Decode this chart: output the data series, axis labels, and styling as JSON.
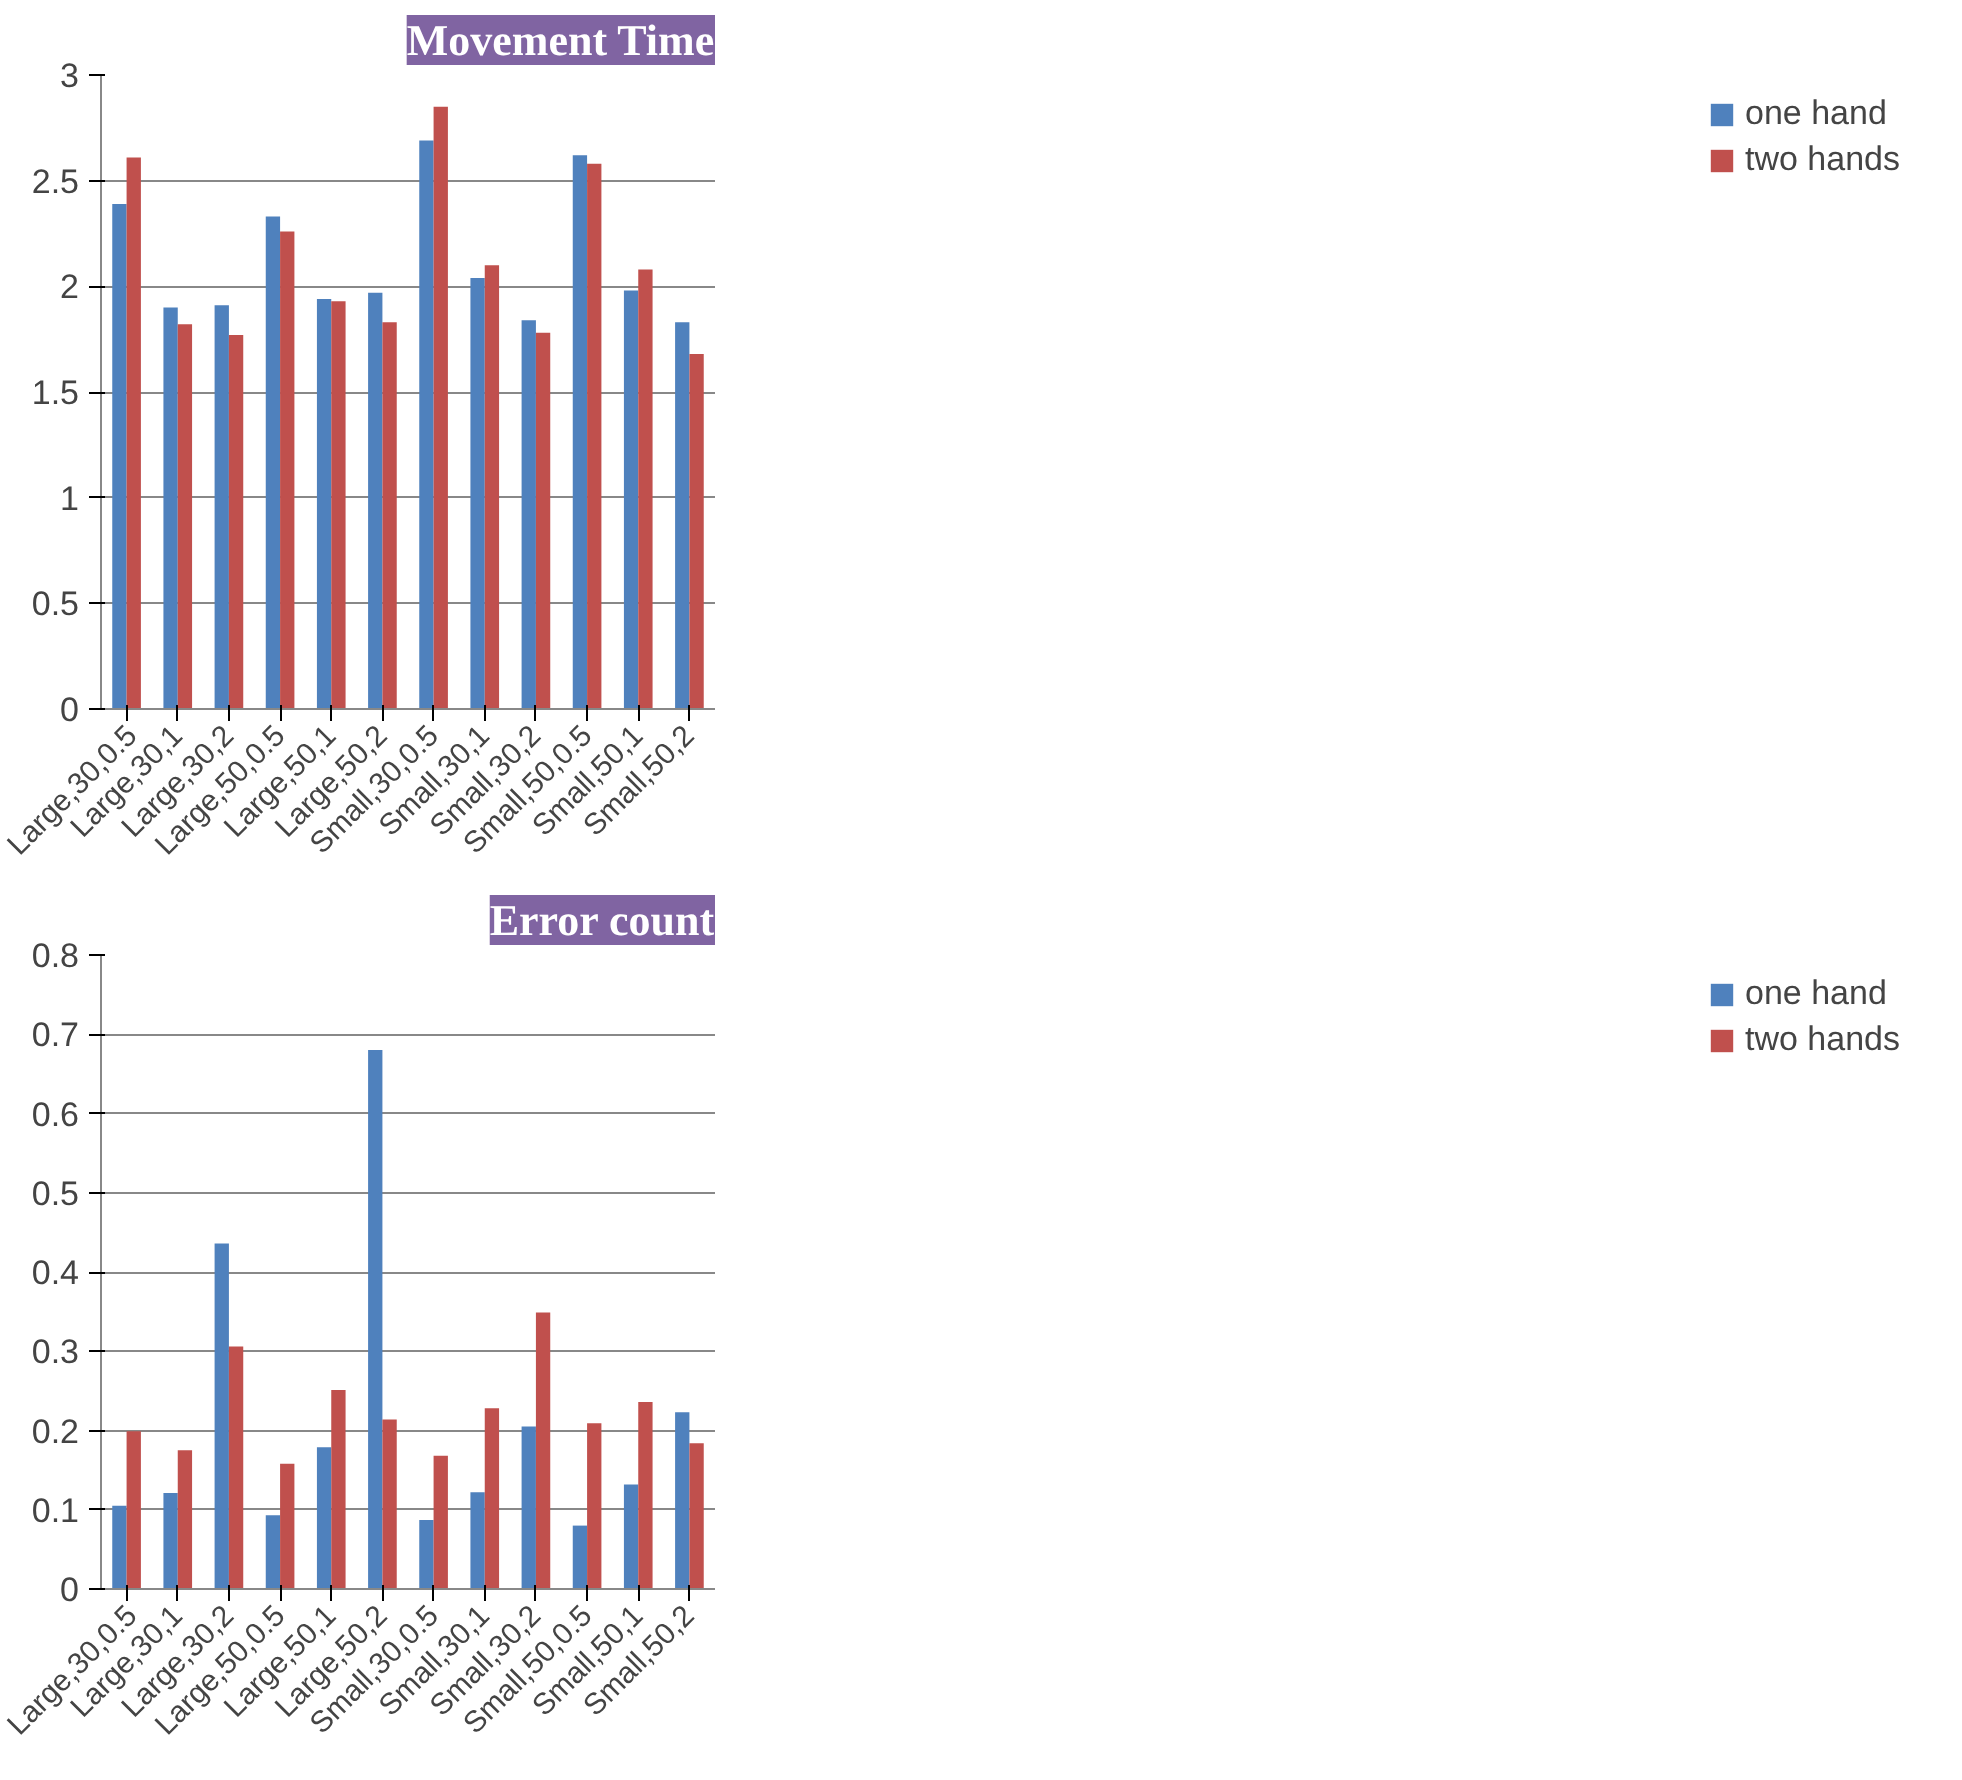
{
  "chart_data": [
    {
      "type": "bar",
      "title": "Movement Time",
      "categories": [
        "Large,30,0.5",
        "Large,30,1",
        "Large,30,2",
        "Large,50,0.5",
        "Large,50,1",
        "Large,50,2",
        "Small,30,0.5",
        "Small,30,1",
        "Small,30,2",
        "Small,50,0.5",
        "Small,50,1",
        "Small,50,2"
      ],
      "series": [
        {
          "name": "one hand",
          "color": "#4f81bd",
          "values": [
            2.39,
            1.9,
            1.91,
            2.33,
            1.94,
            1.97,
            2.69,
            2.04,
            1.84,
            2.62,
            1.98,
            1.83
          ]
        },
        {
          "name": "two hands",
          "color": "#c0504d",
          "values": [
            2.61,
            1.82,
            1.77,
            2.26,
            1.93,
            1.83,
            2.85,
            2.1,
            1.78,
            2.58,
            2.08,
            1.68
          ]
        }
      ],
      "ylim": [
        0,
        3
      ],
      "yticks": [
        0,
        0.5,
        1,
        1.5,
        2,
        2.5,
        3
      ],
      "grid": "y",
      "legend": "right"
    },
    {
      "type": "bar",
      "title": "Error count",
      "categories": [
        "Large,30,0.5",
        "Large,30,1",
        "Large,30,2",
        "Large,50,0.5",
        "Large,50,1",
        "Large,50,2",
        "Small,30,0.5",
        "Small,30,1",
        "Small,30,2",
        "Small,50,0.5",
        "Small,50,1",
        "Small,50,2"
      ],
      "series": [
        {
          "name": "one hand",
          "color": "#4f81bd",
          "values": [
            0.105,
            0.121,
            0.436,
            0.093,
            0.179,
            0.68,
            0.087,
            0.122,
            0.205,
            0.08,
            0.132,
            0.223
          ]
        },
        {
          "name": "two hands",
          "color": "#c0504d",
          "values": [
            0.199,
            0.175,
            0.306,
            0.158,
            0.251,
            0.214,
            0.168,
            0.228,
            0.349,
            0.209,
            0.236,
            0.184
          ]
        }
      ],
      "ylim": [
        0,
        0.8
      ],
      "yticks": [
        0,
        0.1,
        0.2,
        0.3,
        0.4,
        0.5,
        0.6,
        0.7,
        0.8
      ],
      "grid": "y",
      "legend": "right"
    }
  ]
}
